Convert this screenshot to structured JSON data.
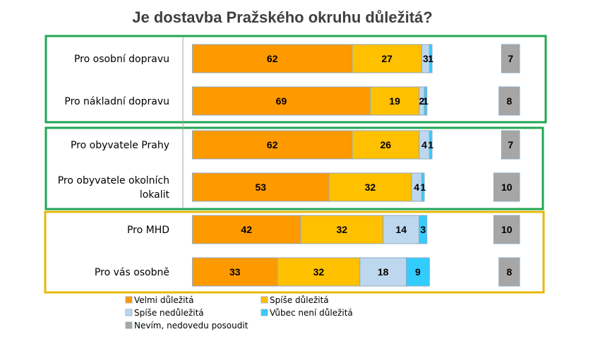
{
  "chart_data": {
    "type": "bar",
    "stacked": true,
    "orientation": "horizontal",
    "title": "Je dostavba Pražského okruhu důležitá?",
    "categories": [
      [
        "Pro osobní dopravu"
      ],
      [
        "Pro nákladní dopravu"
      ],
      [
        "Pro obyvatele Prahy"
      ],
      [
        "Pro obyvatele okolních",
        "lokalit"
      ],
      [
        "Pro MHD"
      ],
      [
        "Pro vás osobně"
      ]
    ],
    "series": [
      {
        "name": "Velmi důležitá",
        "color": "#FF9900",
        "values": [
          62,
          69,
          62,
          53,
          42,
          33
        ]
      },
      {
        "name": "Spíše důležitá",
        "color": "#FFC000",
        "values": [
          27,
          19,
          26,
          32,
          32,
          32
        ]
      },
      {
        "name": "Spíše nedůležitá",
        "color": "#BDD7EE",
        "values": [
          3,
          2,
          4,
          4,
          14,
          18
        ]
      },
      {
        "name": "Vůbec není důležitá",
        "color": "#33CCFF",
        "values": [
          1,
          1,
          1,
          1,
          3,
          9
        ]
      },
      {
        "name": "Nevím, nedovedu posoudit",
        "color": "#A6A6A6",
        "values": [
          7,
          8,
          7,
          10,
          10,
          8
        ],
        "separate": true
      }
    ],
    "groups": [
      {
        "rows": [
          0,
          1
        ],
        "border_color": "#21A654"
      },
      {
        "rows": [
          2,
          3
        ],
        "border_color": "#21A654"
      },
      {
        "rows": [
          4,
          5
        ],
        "border_color": "#E5B80B"
      }
    ],
    "legend_position": "bottom"
  }
}
